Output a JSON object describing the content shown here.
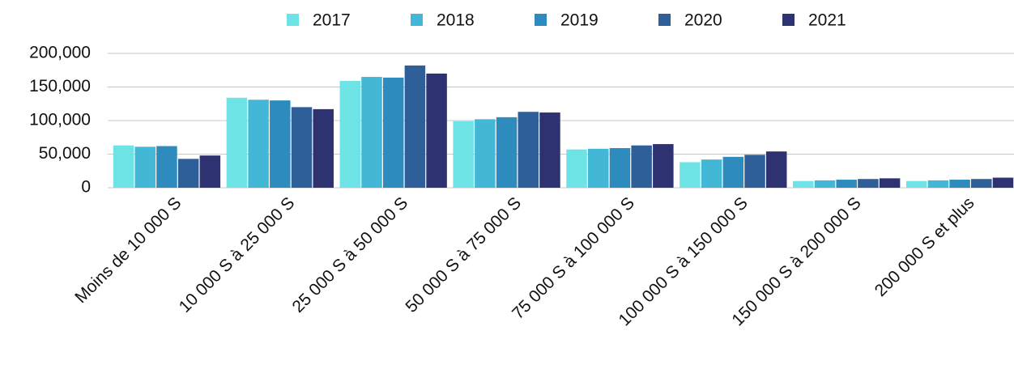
{
  "chart_data": {
    "type": "bar",
    "categories": [
      "Moins de 10 000 S",
      "10 000 S à 25 000 S",
      "25 000 S à 50 000 S",
      "50 000 S à 75 000 S",
      "75 000 S à 100 000 S",
      "100 000 S à 150 000 S",
      "150 000 S à 200 000 S",
      "200 000 S et plus"
    ],
    "series": [
      {
        "name": "2017",
        "color": "#6de3e6",
        "values": [
          63000,
          134000,
          159000,
          99000,
          57000,
          38000,
          10000,
          10000
        ]
      },
      {
        "name": "2018",
        "color": "#42b8d6",
        "values": [
          61000,
          131000,
          165000,
          102000,
          58000,
          42000,
          11000,
          11000
        ]
      },
      {
        "name": "2019",
        "color": "#2d8cbd",
        "values": [
          62000,
          130000,
          164000,
          105000,
          59000,
          46000,
          12000,
          12000
        ]
      },
      {
        "name": "2020",
        "color": "#2f5f99",
        "values": [
          43000,
          120000,
          182000,
          113000,
          63000,
          49000,
          13000,
          13000
        ]
      },
      {
        "name": "2021",
        "color": "#2f3270",
        "values": [
          48000,
          117000,
          170000,
          112000,
          65000,
          54000,
          14000,
          15000
        ]
      }
    ],
    "ylim": [
      0,
      200000
    ],
    "yticks": [
      0,
      {
        "value": 50000,
        "label": "50,000"
      },
      {
        "value": 100000,
        "label": "100,000"
      },
      {
        "value": 150000,
        "label": "150,000"
      },
      {
        "value": 200000,
        "label": "200,000"
      }
    ],
    "grid": true,
    "legend": "top"
  }
}
